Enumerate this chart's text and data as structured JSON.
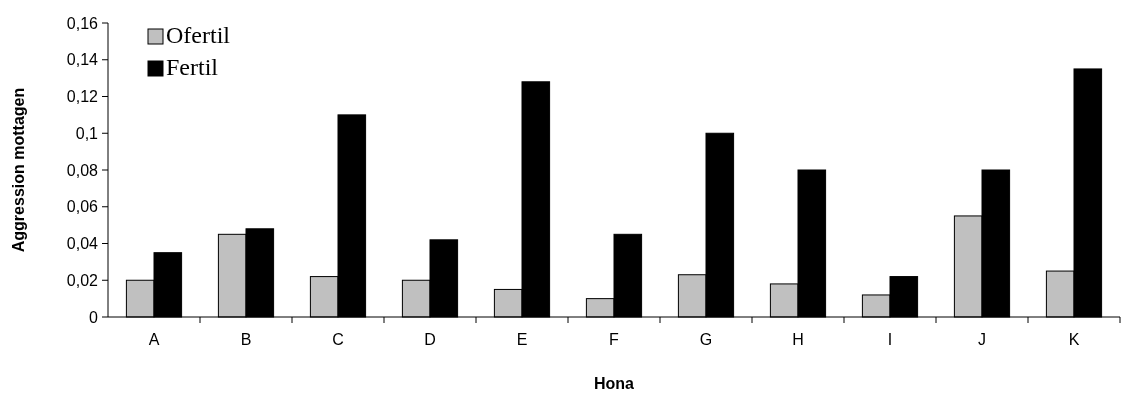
{
  "chart_data": {
    "type": "bar",
    "xlabel": "Hona",
    "ylabel": "Aggression mottagen",
    "categories": [
      "A",
      "B",
      "C",
      "D",
      "E",
      "F",
      "G",
      "H",
      "I",
      "J",
      "K"
    ],
    "series": [
      {
        "name": "Ofertil",
        "color": "#c0c0c0",
        "values": [
          0.02,
          0.045,
          0.022,
          0.02,
          0.015,
          0.01,
          0.023,
          0.018,
          0.012,
          0.055,
          0.025
        ]
      },
      {
        "name": "Fertil",
        "color": "#000000",
        "values": [
          0.035,
          0.048,
          0.11,
          0.042,
          0.128,
          0.045,
          0.1,
          0.08,
          0.022,
          0.08,
          0.135
        ]
      }
    ],
    "ylim": [
      0,
      0.16
    ],
    "yticks": [
      {
        "value": 0,
        "label": "0"
      },
      {
        "value": 0.02,
        "label": "0,02"
      },
      {
        "value": 0.04,
        "label": "0,04"
      },
      {
        "value": 0.06,
        "label": "0,06"
      },
      {
        "value": 0.08,
        "label": "0,08"
      },
      {
        "value": 0.1,
        "label": "0,1"
      },
      {
        "value": 0.12,
        "label": "0,12"
      },
      {
        "value": 0.14,
        "label": "0,14"
      },
      {
        "value": 0.16,
        "label": "0,16"
      }
    ],
    "legend": "top left",
    "grid": false
  }
}
